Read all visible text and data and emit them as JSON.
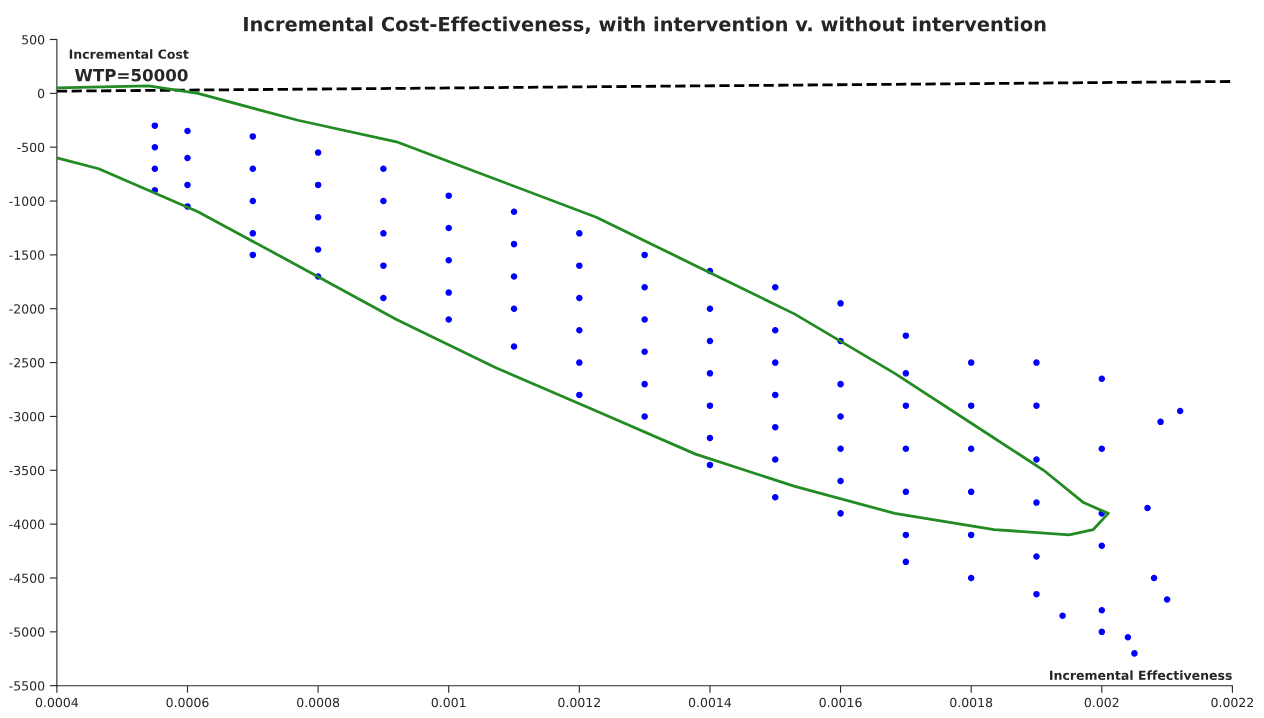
{
  "chart_data": {
    "type": "scatter",
    "title": "Incremental Cost-Effectiveness, with intervention v. without intervention",
    "xlabel": "Incremental Effectiveness",
    "ylabel": "Incremental Cost",
    "xlim": [
      0.0004,
      0.0022
    ],
    "xticks": [
      0.0004,
      0.0006,
      0.0008,
      0.001,
      0.0012,
      0.0014,
      0.0016,
      0.0018,
      0.002,
      0.0022
    ],
    "ylim": [
      -5500,
      500
    ],
    "yticks": [
      -5500,
      -5000,
      -4500,
      -4000,
      -3500,
      -3000,
      -2500,
      -2000,
      -1500,
      -1000,
      -500,
      0,
      500
    ],
    "annotations": [
      "WTP=50000"
    ],
    "series": [
      {
        "marker": "circle",
        "color": "#0000ff",
        "x": [
          0.00055,
          0.00055,
          0.00055,
          0.00055,
          0.0006,
          0.0006,
          0.0006,
          0.0006,
          0.0007,
          0.0007,
          0.0007,
          0.0007,
          0.0007,
          0.0008,
          0.0008,
          0.0008,
          0.0008,
          0.0008,
          0.0009,
          0.0009,
          0.0009,
          0.0009,
          0.0009,
          0.001,
          0.001,
          0.001,
          0.001,
          0.001,
          0.0011,
          0.0011,
          0.0011,
          0.0011,
          0.0011,
          0.0012,
          0.0012,
          0.0012,
          0.0012,
          0.0012,
          0.0012,
          0.0013,
          0.0013,
          0.0013,
          0.0013,
          0.0013,
          0.0013,
          0.0014,
          0.0014,
          0.0014,
          0.0014,
          0.0014,
          0.0014,
          0.0014,
          0.0015,
          0.0015,
          0.0015,
          0.0015,
          0.0015,
          0.0015,
          0.0015,
          0.0016,
          0.0016,
          0.0016,
          0.0016,
          0.0016,
          0.0016,
          0.0016,
          0.0017,
          0.0017,
          0.0017,
          0.0017,
          0.0017,
          0.0017,
          0.0017,
          0.0018,
          0.0018,
          0.0018,
          0.0018,
          0.0018,
          0.0018,
          0.0019,
          0.0019,
          0.0019,
          0.0019,
          0.0019,
          0.0019,
          0.002,
          0.002,
          0.002,
          0.002,
          0.002,
          0.002,
          0.00209,
          0.00212,
          0.00207,
          0.00205,
          0.00204,
          0.0021,
          0.00208,
          0.00194
        ],
        "values": [
          -300,
          -500,
          -700,
          -900,
          -350,
          -600,
          -850,
          -1050,
          -400,
          -700,
          -1000,
          -1300,
          -1500,
          -550,
          -850,
          -1150,
          -1450,
          -1700,
          -700,
          -1000,
          -1300,
          -1600,
          -1900,
          -950,
          -1250,
          -1550,
          -1850,
          -2100,
          -1100,
          -1400,
          -1700,
          -2000,
          -2350,
          -1300,
          -1600,
          -1900,
          -2200,
          -2500,
          -2800,
          -1500,
          -1800,
          -2100,
          -2400,
          -2700,
          -3000,
          -1650,
          -2000,
          -2300,
          -2600,
          -2900,
          -3200,
          -3450,
          -1800,
          -2200,
          -2500,
          -2800,
          -3100,
          -3400,
          -3750,
          -1950,
          -2300,
          -2700,
          -3000,
          -3300,
          -3600,
          -3900,
          -2250,
          -2600,
          -2900,
          -3300,
          -3700,
          -4100,
          -4350,
          -2500,
          -2900,
          -3300,
          -3700,
          -4100,
          -4500,
          -2500,
          -2900,
          -3400,
          -3800,
          -4300,
          -4650,
          -2650,
          -3300,
          -3900,
          -4200,
          -4800,
          -5000,
          -3050,
          -2950,
          -3850,
          -5200,
          -5050,
          -4700,
          -4500,
          -4850
        ]
      },
      {
        "type": "line",
        "color": "#000000",
        "line_style": "dashed",
        "x": [
          0.0004,
          0.0022
        ],
        "values": [
          20,
          110
        ]
      },
      {
        "type": "line",
        "color": "#228b22",
        "line_style": "solid",
        "x": [
          0.0004,
          0.000464,
          0.000616,
          0.000769,
          0.00092,
          0.001073,
          0.001226,
          0.001378,
          0.00153,
          0.001683,
          0.001835,
          0.00195,
          0.001987,
          0.00201,
          0.001972,
          0.001911,
          0.001835,
          0.001683,
          0.00153,
          0.001378,
          0.001226,
          0.001073,
          0.00092,
          0.000769,
          0.000616,
          0.00054,
          0.0004
        ],
        "values": [
          -600,
          -700,
          -1100,
          -1600,
          -2100,
          -2550,
          -2950,
          -3350,
          -3650,
          -3900,
          -4050,
          -4100,
          -4050,
          -3900,
          -3800,
          -3500,
          -3200,
          -2600,
          -2050,
          -1600,
          -1150,
          -800,
          -450,
          -250,
          0,
          70,
          50
        ]
      }
    ]
  }
}
